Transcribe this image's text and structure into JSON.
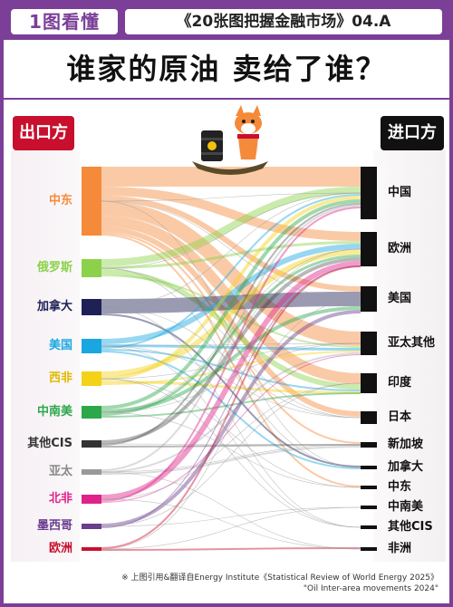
{
  "header": {
    "brand": "1图看懂",
    "series": "《20张图把握金融市场》04.A"
  },
  "headline": "谁家的原油  卖给了谁？",
  "exporters": {
    "title": "出口方",
    "items": [
      {
        "label": "中东",
        "color": "#f58a3b"
      },
      {
        "label": "俄罗斯",
        "color": "#8bd24a"
      },
      {
        "label": "加拿大",
        "color": "#1f2156"
      },
      {
        "label": "美国",
        "color": "#1aa7e0"
      },
      {
        "label": "西非",
        "color": "#f4d21a"
      },
      {
        "label": "中南美",
        "color": "#2ca84b"
      },
      {
        "label": "其他CIS",
        "color": "#333333"
      },
      {
        "label": "亚太",
        "color": "#999999"
      },
      {
        "label": "北非",
        "color": "#e0218a"
      },
      {
        "label": "墨西哥",
        "color": "#6a3d8f"
      },
      {
        "label": "欧洲",
        "color": "#c8102e"
      }
    ]
  },
  "importers": {
    "title": "进口方",
    "items": [
      {
        "label": "中国"
      },
      {
        "label": "欧洲"
      },
      {
        "label": "美国"
      },
      {
        "label": "亚太其他"
      },
      {
        "label": "印度"
      },
      {
        "label": "日本"
      },
      {
        "label": "新加坡"
      },
      {
        "label": "加拿大"
      },
      {
        "label": "中东"
      },
      {
        "label": "中南美"
      },
      {
        "label": "其他CIS"
      },
      {
        "label": "非洲"
      }
    ]
  },
  "footnote": {
    "line1": "※ 上图引用&翻译自Energy Institute《Statistical Review of World Energy 2025》",
    "line2": "\"Oil Inter-area movements 2024\""
  }
}
